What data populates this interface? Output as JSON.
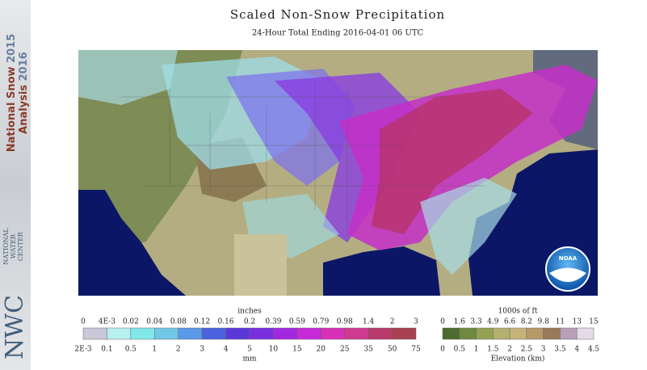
{
  "header": {
    "title": "Scaled Non-Snow Precipitation",
    "subtitle": "24-Hour Total Ending 2016-04-01 06 UTC"
  },
  "sidebar": {
    "line1": "National Snow",
    "year1": "2015",
    "line2": "Analysis",
    "year2": "2016",
    "logo": "NWC",
    "logo_text": [
      "NATIONAL",
      "WATER",
      "CENTER"
    ]
  },
  "noaa_logo": "NOAA",
  "legend_precip": {
    "unit_top": "inches",
    "labels_top": [
      "0",
      "4E-3",
      "0.02",
      "0.04",
      "0.08",
      "0.12",
      "0.16",
      "0.2",
      "0.39",
      "0.59",
      "0.79",
      "0.98",
      "1.4",
      "2",
      "3"
    ],
    "unit_bottom": "mm",
    "labels_bottom": [
      "2E-3",
      "0.1",
      "0.5",
      "1",
      "2",
      "3",
      "4",
      "5",
      "10",
      "15",
      "20",
      "25",
      "35",
      "50",
      "75"
    ]
  },
  "legend_elevation": {
    "unit_top": "1000s of ft",
    "labels_top": [
      "0",
      "1.6",
      "3.3",
      "4.9",
      "6.6",
      "8.2",
      "9.8",
      "11",
      "13",
      "15"
    ],
    "unit_bottom": "Elevation (km)",
    "labels_bottom": [
      "0",
      "0.5",
      "1",
      "1.5",
      "2",
      "2.5",
      "3",
      "3.5",
      "4",
      "4.5"
    ]
  }
}
